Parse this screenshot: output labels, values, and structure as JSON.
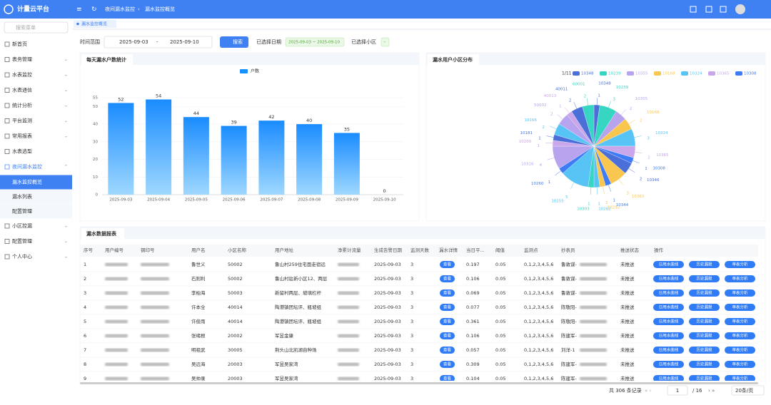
{
  "header": {
    "logo": "计量云平台",
    "breadcrumb": [
      "夜间漏水监控",
      "漏水监控概览"
    ]
  },
  "sidebar": {
    "search_placeholder": "搜索菜单",
    "menu": [
      "新首页",
      "表务管理",
      "水表监控",
      "水表通信",
      "统计分析",
      "平台监测",
      "常用报表",
      "水表选型",
      "夜间漏水监控",
      "小区控漏",
      "配置管理",
      "个人中心"
    ],
    "submenu": [
      "漏水监控概览",
      "漏水列表",
      "配置管理"
    ]
  },
  "tabs": [
    "漏水监控概览"
  ],
  "filter": {
    "time_label": "时间范围",
    "start": "2025-09-03",
    "separator": "-",
    "end": "2025-09-10",
    "search_button": "搜索",
    "selected_date_label": "已选择日期",
    "selected_date": "2025-09-03 ~ 2025-09-10",
    "selected_area_label": "已选择小区",
    "selected_area": "-"
  },
  "chart_data": [
    {
      "type": "bar",
      "title": "每天漏水户数统计",
      "series": [
        {
          "name": "户数",
          "color": "#1890ff",
          "values": [
            52,
            54,
            44,
            39,
            42,
            40,
            35,
            0
          ]
        }
      ],
      "categories": [
        "2025-09-03",
        "2025-09-04",
        "2025-09-05",
        "2025-09-06",
        "2025-09-07",
        "2025-09-08",
        "2025-09-09",
        "2025-09-10"
      ],
      "ylim": [
        0,
        55
      ],
      "yticks": [
        0,
        10,
        20,
        30,
        40,
        50,
        55
      ]
    },
    {
      "type": "pie",
      "title": "漏水用户小区分布",
      "legend_page": "1/11",
      "categories": [
        "10348",
        "10239",
        "10355",
        "10168",
        "10324",
        "10365",
        "10308",
        "10346",
        "10363",
        "10344",
        "10292",
        "10262",
        "10303",
        "10255",
        "10260",
        "10316",
        "10200",
        "10181",
        "10166",
        "50002",
        "40013",
        "40011",
        "60001"
      ],
      "values": [
        1,
        3,
        2,
        2,
        3,
        2,
        1,
        2,
        3,
        1,
        1,
        1,
        1,
        5,
        1,
        4,
        1,
        1,
        2,
        2,
        1,
        2,
        2
      ],
      "colors": [
        "#4a6fd8",
        "#36d6c3",
        "#b7a3ee",
        "#f9c650",
        "#58c3f5",
        "#c9a7ea",
        "#3e7bf6",
        "#4a6fd8",
        "#f9c650",
        "#3e7bf6",
        "#f9c650",
        "#58c3f5",
        "#36d6c3",
        "#58c3f5",
        "#3e7bf6",
        "#b7a3ee",
        "#c9a7ea",
        "#4a6fd8",
        "#58c3f5",
        "#b7a3ee",
        "#c9a7ea",
        "#4a6fd8",
        "#36d6c3"
      ]
    }
  ],
  "table": {
    "title": "漏水数据报表",
    "columns": [
      "序号",
      "用户编号",
      "钢印号",
      "用户名",
      "小区名称",
      "用户地址",
      "净累计流量",
      "生成告警日期",
      "监测天数",
      "漏水详情",
      "当日平...",
      "阈值",
      "监测点",
      "抄表员",
      "推送状态",
      "操作"
    ],
    "rows": [
      [
        "1",
        "鲁世义",
        "50002",
        "鲁山村259住宅面走宿远",
        "2025-09-03",
        "3",
        "0.197",
        "0.05",
        "0,1,2,3,4,5,6",
        "鲁敦谋-",
        "未推送"
      ],
      [
        "2",
        "石则利",
        "50002",
        "鲁山村驻新小区12、两层",
        "2025-09-03",
        "3",
        "0.106",
        "0.05",
        "0,1,2,3,4,5,6",
        "鲁敦谋-",
        "未推送"
      ],
      [
        "3",
        "李柏海",
        "50003",
        "新留村两层、坡璃栏杆",
        "2025-09-03",
        "3",
        "0.069",
        "0.05",
        "0,1,2,3,4,5,6",
        "鲁敦谋-",
        "未推送"
      ],
      [
        "4",
        "许本全",
        "40014",
        "陶港镇团坛评、瓶坡组",
        "2025-09-03",
        "3",
        "0.077",
        "0.05",
        "0,1,2,3,4,5,6",
        "陈敬阳-",
        "未推送"
      ],
      [
        "5",
        "许俊雨",
        "40014",
        "陶港镇团坛评、瓶坡组",
        "2025-09-03",
        "3",
        "0.361",
        "0.05",
        "0,1,2,3,4,5,6",
        "陈敬阳-",
        "未推送"
      ],
      [
        "6",
        "张绪根",
        "20002",
        "军昱金康",
        "2025-09-03",
        "3",
        "0.106",
        "0.05",
        "0,1,2,3,4,5,6",
        "陈建军-",
        "未推送"
      ],
      [
        "7",
        "明祖武",
        "30005",
        "荆头山北凯湖自种场",
        "2025-09-03",
        "3",
        "0.057",
        "0.05",
        "0,1,2,3,4,5,6",
        "刘洋-1",
        "未推送"
      ],
      [
        "8",
        "吴远海",
        "20003",
        "军昱吴家湾",
        "2025-09-03",
        "3",
        "0.309",
        "0.05",
        "0,1,2,3,4,5,6",
        "陈建军-",
        "未推送"
      ],
      [
        "9",
        "吴帅录",
        "20003",
        "军昱吴家湾",
        "2025-09-03",
        "3",
        "0.104",
        "0.05",
        "0,1,2,3,4,5,6",
        "陈建军-",
        "未推送"
      ]
    ],
    "detail_button": "查看",
    "actions": [
      "日用水曲线",
      "历史漏损",
      "单表分析"
    ]
  },
  "pagination": {
    "total": "共 306 条记录",
    "page": "1",
    "pages": "/ 16",
    "page_size": "20条/页"
  }
}
